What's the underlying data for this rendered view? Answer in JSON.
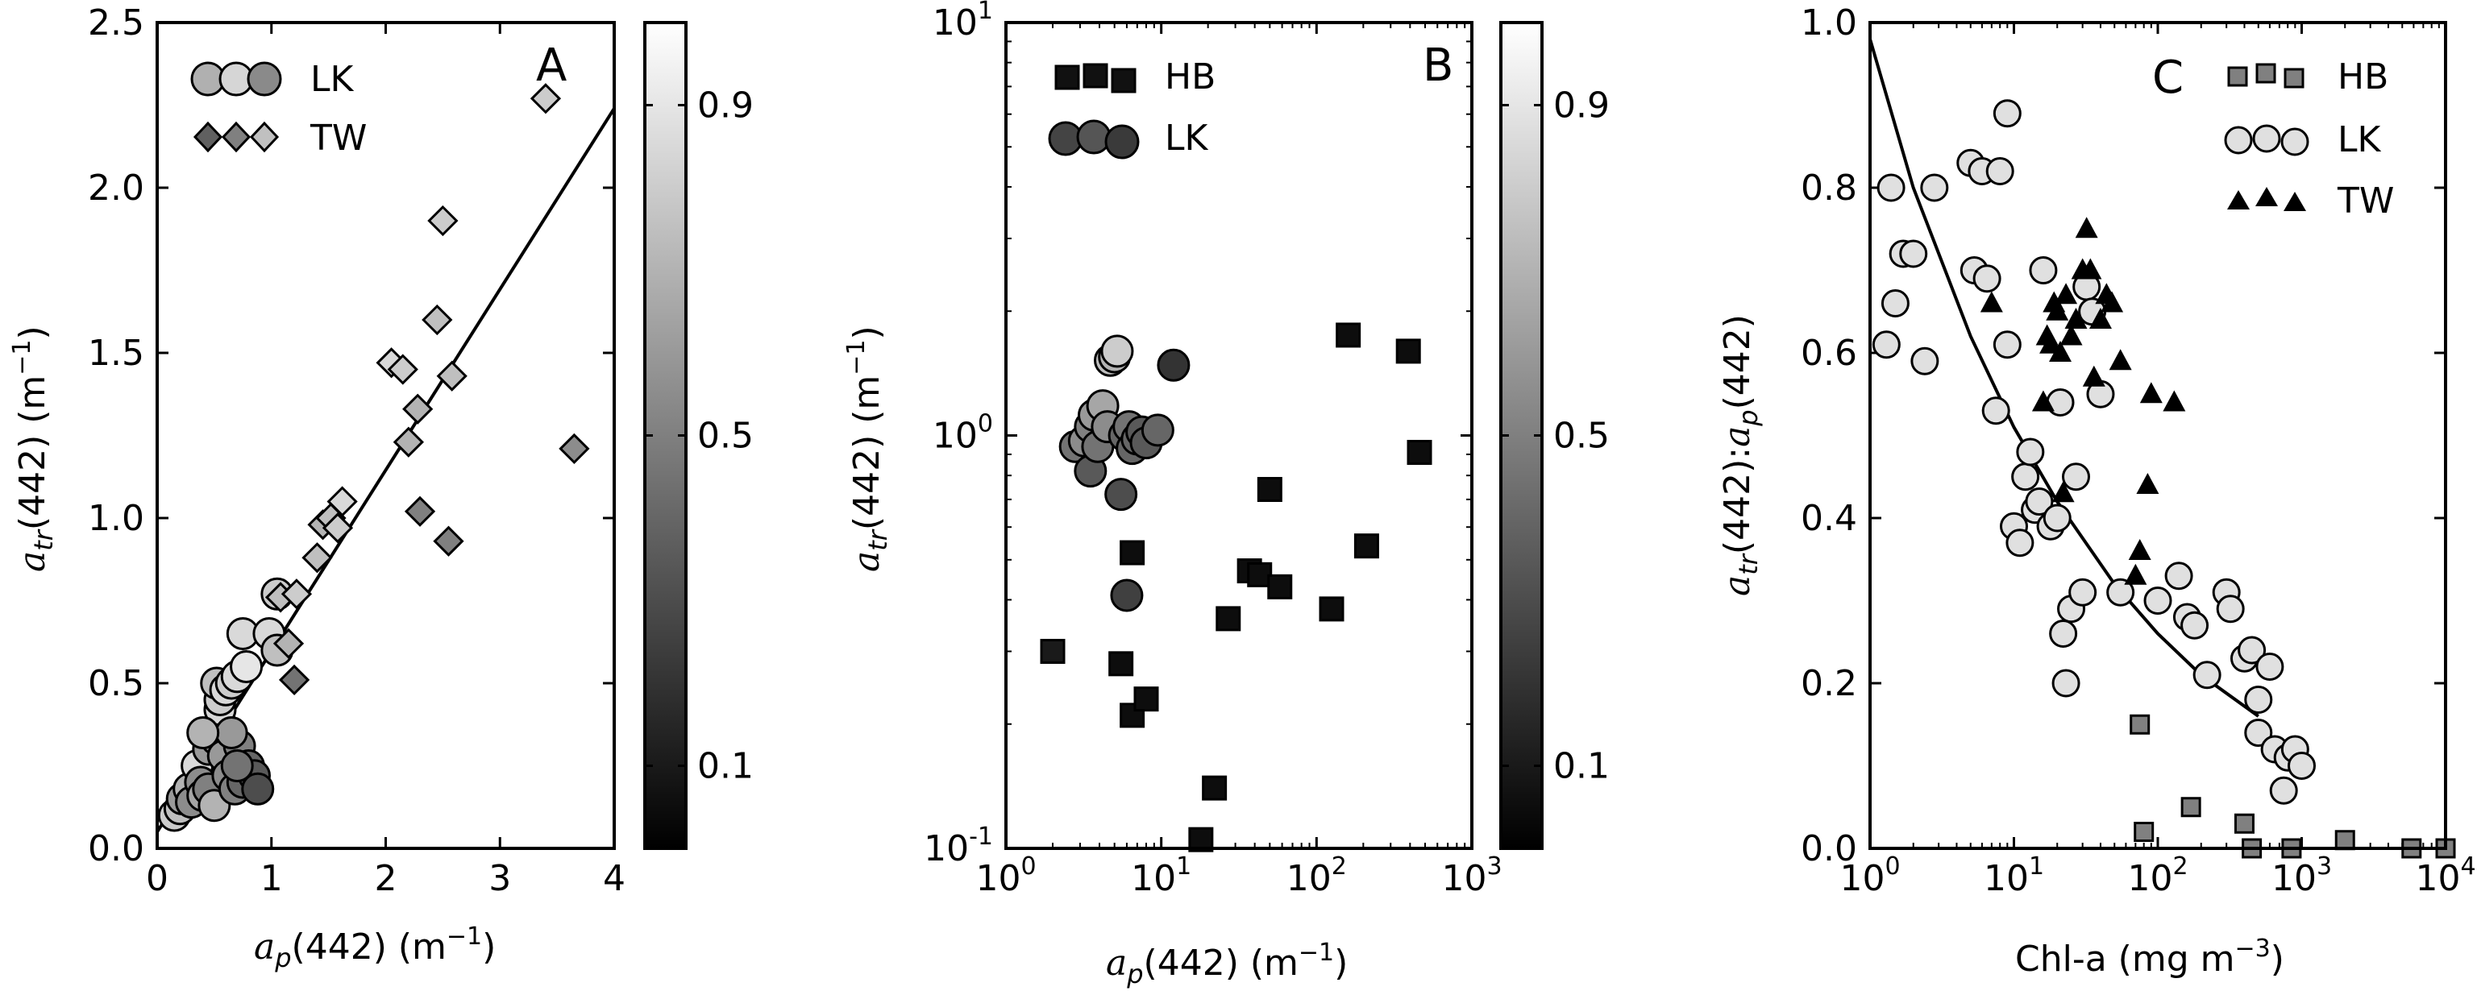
{
  "colors": {
    "axis": "#000000",
    "line": "#000000",
    "hb_square_a": "#111111",
    "hb_square_c": "#808080"
  },
  "chart_data": [
    {
      "type": "scatter",
      "panel": "A",
      "xlabel": "a_p(442) (m-1)",
      "ylabel": "a_tr(442) (m-1)",
      "xlim": [
        0,
        4
      ],
      "ylim": [
        0,
        2.5
      ],
      "xscale": "linear",
      "yscale": "linear",
      "xticks": [
        "0",
        "1",
        "2",
        "3",
        "4"
      ],
      "yticks": [
        "0.0",
        "0.5",
        "1.0",
        "1.5",
        "2.0",
        "2.5"
      ],
      "legend": [
        "LK",
        "TW"
      ],
      "legend_location": "top-left",
      "colorbar": {
        "ticks": [
          "0.1",
          "0.5",
          "0.9"
        ],
        "cmap": "gray"
      },
      "fit_line": {
        "x": [
          0,
          4
        ],
        "y": [
          0.05,
          2.24
        ]
      },
      "series": [
        {
          "name": "LK",
          "marker": "circle",
          "points": [
            [
              0.15,
              0.1,
              0.8
            ],
            [
              0.2,
              0.12,
              0.75
            ],
            [
              0.22,
              0.15,
              0.6
            ],
            [
              0.28,
              0.18,
              0.7
            ],
            [
              0.3,
              0.14,
              0.55
            ],
            [
              0.35,
              0.25,
              0.85
            ],
            [
              0.38,
              0.2,
              0.55
            ],
            [
              0.4,
              0.16,
              0.65
            ],
            [
              0.45,
              0.18,
              0.5
            ],
            [
              0.5,
              0.13,
              0.7
            ],
            [
              0.45,
              0.3,
              0.6
            ],
            [
              0.52,
              0.33,
              0.55
            ],
            [
              0.55,
              0.38,
              0.75
            ],
            [
              0.55,
              0.42,
              0.85
            ],
            [
              0.55,
              0.45,
              0.8
            ],
            [
              0.52,
              0.5,
              0.75
            ],
            [
              0.6,
              0.48,
              0.85
            ],
            [
              0.65,
              0.5,
              0.8
            ],
            [
              0.7,
              0.52,
              0.85
            ],
            [
              0.78,
              0.55,
              0.9
            ],
            [
              0.58,
              0.28,
              0.6
            ],
            [
              0.62,
              0.22,
              0.55
            ],
            [
              0.68,
              0.18,
              0.5
            ],
            [
              0.72,
              0.31,
              0.5
            ],
            [
              0.75,
              0.2,
              0.4
            ],
            [
              0.8,
              0.25,
              0.4
            ],
            [
              0.85,
              0.22,
              0.35
            ],
            [
              0.88,
              0.18,
              0.3
            ],
            [
              0.7,
              0.25,
              0.45
            ],
            [
              0.65,
              0.35,
              0.6
            ],
            [
              0.75,
              0.65,
              0.85
            ],
            [
              0.98,
              0.65,
              0.85
            ],
            [
              1.05,
              0.6,
              0.75
            ],
            [
              1.05,
              0.77,
              0.8
            ],
            [
              0.4,
              0.35,
              0.7
            ]
          ]
        },
        {
          "name": "TW",
          "marker": "diamond",
          "points": [
            [
              1.08,
              0.76,
              0.75
            ],
            [
              1.15,
              0.62,
              0.7
            ],
            [
              1.22,
              0.77,
              0.8
            ],
            [
              1.2,
              0.51,
              0.45
            ],
            [
              1.4,
              0.88,
              0.75
            ],
            [
              1.45,
              0.98,
              0.7
            ],
            [
              1.52,
              1.0,
              0.75
            ],
            [
              1.58,
              0.97,
              0.8
            ],
            [
              1.62,
              1.05,
              0.85
            ],
            [
              2.05,
              1.47,
              0.85
            ],
            [
              2.15,
              1.45,
              0.8
            ],
            [
              2.2,
              1.23,
              0.7
            ],
            [
              2.28,
              1.33,
              0.7
            ],
            [
              2.3,
              1.02,
              0.5
            ],
            [
              2.45,
              1.6,
              0.75
            ],
            [
              2.5,
              1.9,
              0.8
            ],
            [
              2.58,
              1.43,
              0.75
            ],
            [
              2.55,
              0.93,
              0.5
            ],
            [
              3.4,
              2.27,
              0.8
            ],
            [
              3.65,
              1.21,
              0.55
            ]
          ]
        }
      ]
    },
    {
      "type": "scatter",
      "panel": "B",
      "xlabel": "a_p(442) (m-1)",
      "ylabel": "a_tr(442) (m-1)",
      "xlim": [
        1,
        1000
      ],
      "ylim": [
        0.1,
        10
      ],
      "xscale": "log",
      "yscale": "log",
      "xticks": [
        "10^0",
        "10^1",
        "10^2",
        "10^3"
      ],
      "yticks": [
        "10^-1",
        "10^0",
        "10^1"
      ],
      "legend": [
        "HB",
        "LK"
      ],
      "legend_location": "top-left",
      "colorbar": {
        "ticks": [
          "0.1",
          "0.5",
          "0.9"
        ],
        "cmap": "gray"
      },
      "series": [
        {
          "name": "HB",
          "marker": "square",
          "points": [
            [
              2.0,
              0.3,
              0.1
            ],
            [
              5.5,
              0.28,
              0.05
            ],
            [
              6.5,
              0.52,
              0.05
            ],
            [
              6.5,
              0.21,
              0.05
            ],
            [
              8.0,
              0.23,
              0.05
            ],
            [
              18,
              0.105,
              0.05
            ],
            [
              22,
              0.14,
              0.05
            ],
            [
              27,
              0.36,
              0.05
            ],
            [
              37,
              0.47,
              0.05
            ],
            [
              43,
              0.46,
              0.05
            ],
            [
              50,
              0.74,
              0.05
            ],
            [
              58,
              0.43,
              0.05
            ],
            [
              125,
              0.38,
              0.05
            ],
            [
              160,
              1.75,
              0.05
            ],
            [
              210,
              0.54,
              0.05
            ],
            [
              390,
              1.6,
              0.05
            ],
            [
              460,
              0.91,
              0.05
            ]
          ]
        },
        {
          "name": "LK",
          "marker": "circle",
          "points": [
            [
              2.8,
              0.94,
              0.45
            ],
            [
              3.2,
              0.97,
              0.55
            ],
            [
              3.5,
              0.82,
              0.35
            ],
            [
              3.5,
              1.05,
              0.5
            ],
            [
              3.7,
              1.12,
              0.6
            ],
            [
              3.9,
              0.94,
              0.45
            ],
            [
              4.2,
              1.18,
              0.65
            ],
            [
              4.5,
              1.05,
              0.55
            ],
            [
              4.7,
              1.52,
              0.75
            ],
            [
              5.0,
              1.55,
              0.7
            ],
            [
              5.2,
              1.6,
              0.8
            ],
            [
              5.5,
              0.72,
              0.3
            ],
            [
              5.8,
              1.0,
              0.4
            ],
            [
              6.0,
              0.41,
              0.25
            ],
            [
              6.2,
              1.05,
              0.45
            ],
            [
              6.5,
              0.93,
              0.4
            ],
            [
              7.0,
              0.98,
              0.4
            ],
            [
              7.5,
              1.02,
              0.35
            ],
            [
              8.0,
              0.96,
              0.35
            ],
            [
              9.5,
              1.03,
              0.4
            ],
            [
              12,
              1.48,
              0.2
            ]
          ]
        }
      ]
    },
    {
      "type": "scatter",
      "panel": "C",
      "xlabel": "Chl-a (mg m-3)",
      "ylabel": "a_tr(442):a_p(442)",
      "xlim": [
        1,
        10000
      ],
      "ylim": [
        0,
        1.0
      ],
      "xscale": "log",
      "yscale": "linear",
      "xticks": [
        "10^0",
        "10^1",
        "10^2",
        "10^3",
        "10^4"
      ],
      "yticks": [
        "0.0",
        "0.2",
        "0.4",
        "0.6",
        "0.8",
        "1.0"
      ],
      "legend": [
        "HB",
        "LK",
        "TW"
      ],
      "legend_location": "top-right",
      "fit_line": {
        "x": [
          1,
          2,
          5,
          10,
          20,
          50,
          100,
          200,
          500
        ],
        "y": [
          0.98,
          0.8,
          0.62,
          0.51,
          0.42,
          0.32,
          0.26,
          0.21,
          0.16
        ]
      },
      "series": [
        {
          "name": "HB",
          "marker": "square",
          "points": [
            [
              75,
              0.15
            ],
            [
              80,
              0.02
            ],
            [
              170,
              0.05
            ],
            [
              400,
              0.03
            ],
            [
              450,
              0.0
            ],
            [
              850,
              0.0
            ],
            [
              2000,
              0.01
            ],
            [
              5800,
              0.0
            ],
            [
              10000,
              0.0
            ]
          ]
        },
        {
          "name": "LK",
          "marker": "circle",
          "points": [
            [
              1.3,
              0.61
            ],
            [
              1.4,
              0.8
            ],
            [
              1.5,
              0.66
            ],
            [
              1.7,
              0.72
            ],
            [
              2.0,
              0.72
            ],
            [
              2.4,
              0.59
            ],
            [
              2.8,
              0.8
            ],
            [
              5.0,
              0.83
            ],
            [
              5.3,
              0.7
            ],
            [
              6.0,
              0.82
            ],
            [
              6.5,
              0.69
            ],
            [
              7.5,
              0.53
            ],
            [
              8.0,
              0.82
            ],
            [
              9.0,
              0.61
            ],
            [
              9.0,
              0.89
            ],
            [
              10,
              0.39
            ],
            [
              11,
              0.37
            ],
            [
              12,
              0.45
            ],
            [
              13,
              0.48
            ],
            [
              14,
              0.41
            ],
            [
              15,
              0.42
            ],
            [
              16,
              0.7
            ],
            [
              18,
              0.39
            ],
            [
              20,
              0.4
            ],
            [
              21,
              0.54
            ],
            [
              22,
              0.26
            ],
            [
              23,
              0.2
            ],
            [
              25,
              0.29
            ],
            [
              27,
              0.45
            ],
            [
              30,
              0.31
            ],
            [
              32,
              0.68
            ],
            [
              35,
              0.65
            ],
            [
              40,
              0.55
            ],
            [
              55,
              0.31
            ],
            [
              100,
              0.3
            ],
            [
              140,
              0.33
            ],
            [
              160,
              0.28
            ],
            [
              180,
              0.27
            ],
            [
              220,
              0.21
            ],
            [
              300,
              0.31
            ],
            [
              320,
              0.29
            ],
            [
              400,
              0.23
            ],
            [
              450,
              0.24
            ],
            [
              500,
              0.18
            ],
            [
              500,
              0.14
            ],
            [
              600,
              0.22
            ],
            [
              650,
              0.12
            ],
            [
              750,
              0.07
            ],
            [
              800,
              0.11
            ],
            [
              900,
              0.12
            ],
            [
              1000,
              0.1
            ]
          ]
        },
        {
          "name": "TW",
          "marker": "triangle",
          "points": [
            [
              7,
              0.66
            ],
            [
              16,
              0.54
            ],
            [
              17,
              0.62
            ],
            [
              18,
              0.61
            ],
            [
              19,
              0.66
            ],
            [
              20,
              0.65
            ],
            [
              21,
              0.6
            ],
            [
              22,
              0.43
            ],
            [
              23,
              0.67
            ],
            [
              25,
              0.62
            ],
            [
              27,
              0.64
            ],
            [
              30,
              0.7
            ],
            [
              32,
              0.75
            ],
            [
              34,
              0.7
            ],
            [
              36,
              0.57
            ],
            [
              40,
              0.64
            ],
            [
              44,
              0.67
            ],
            [
              48,
              0.66
            ],
            [
              55,
              0.59
            ],
            [
              70,
              0.33
            ],
            [
              75,
              0.36
            ],
            [
              85,
              0.44
            ],
            [
              90,
              0.55
            ],
            [
              130,
              0.54
            ]
          ]
        }
      ]
    }
  ]
}
